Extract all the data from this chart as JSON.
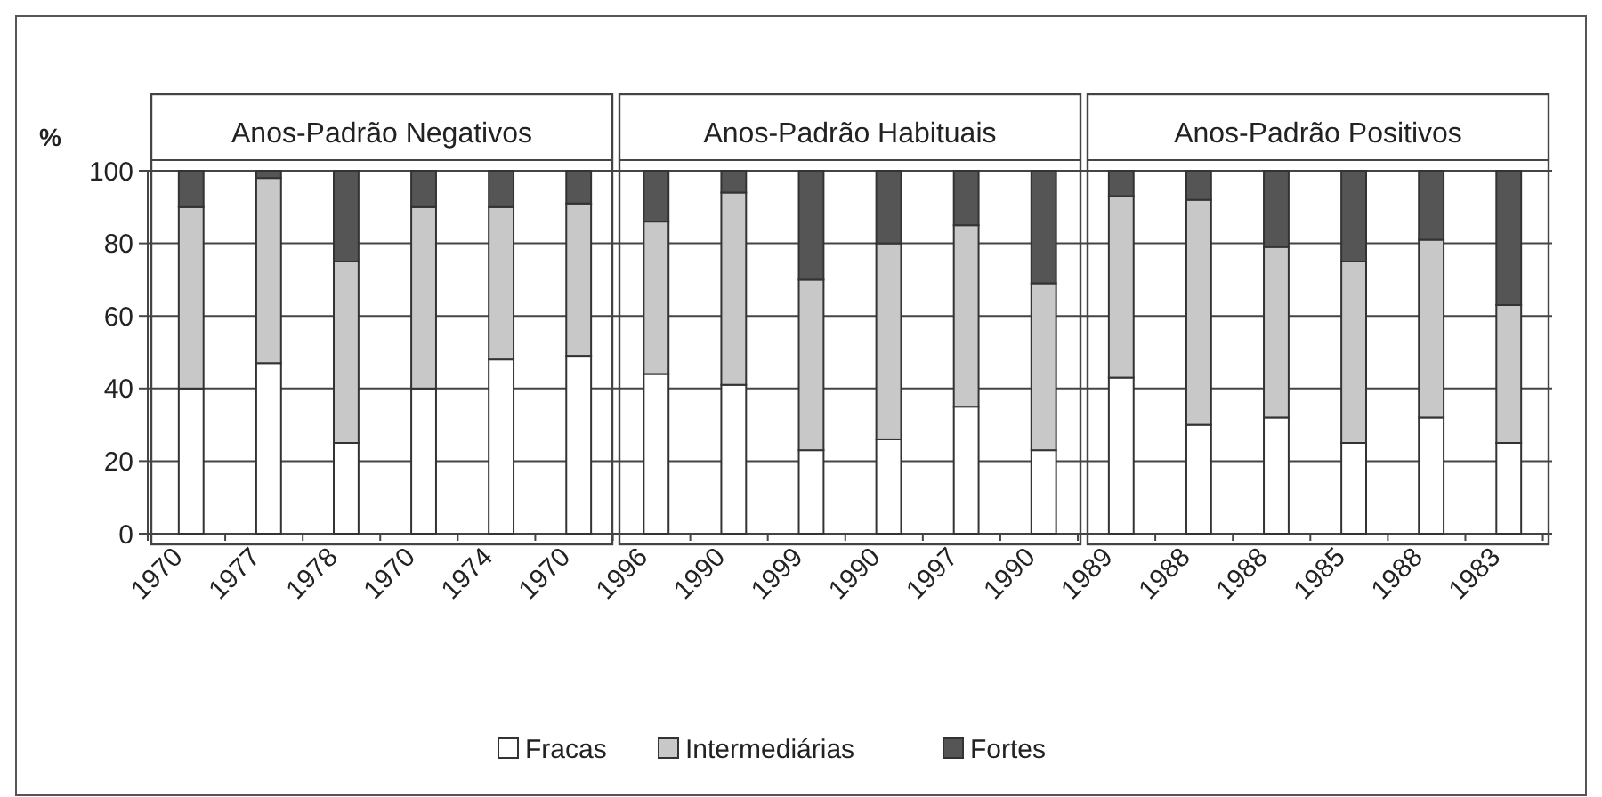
{
  "chart_data": {
    "type": "bar",
    "stacked": true,
    "ylabel": "%",
    "annotations": [
      "Anos-Padrão Negativos",
      "Anos-Padrão Habituais",
      "Anos-Padrão Positivos"
    ],
    "categories": [
      "1970",
      "1977",
      "1978",
      "1970",
      "1974",
      "1970",
      "1996",
      "1990",
      "1999",
      "1990",
      "1997",
      "1990",
      "1989",
      "1988",
      "1988",
      "1985",
      "1988",
      "1983"
    ],
    "series": [
      {
        "name": "Fracas",
        "color": "#ffffff",
        "values": [
          40,
          47,
          25,
          40,
          48,
          49,
          44,
          41,
          23,
          26,
          35,
          23,
          43,
          30,
          32,
          25,
          32,
          25
        ]
      },
      {
        "name": "Intermediárias",
        "color": "#c8c8c8",
        "values": [
          50,
          51,
          50,
          50,
          42,
          42,
          42,
          53,
          47,
          54,
          50,
          46,
          50,
          62,
          47,
          50,
          49,
          38
        ]
      },
      {
        "name": "Fortes",
        "color": "#555555",
        "values": [
          10,
          2,
          25,
          10,
          10,
          9,
          14,
          6,
          30,
          20,
          15,
          31,
          7,
          8,
          21,
          25,
          19,
          37
        ]
      }
    ],
    "ylim": [
      0,
      100
    ],
    "yticks": [
      0,
      20,
      40,
      60,
      80,
      100
    ],
    "grid": "y",
    "legend": "bottom"
  }
}
